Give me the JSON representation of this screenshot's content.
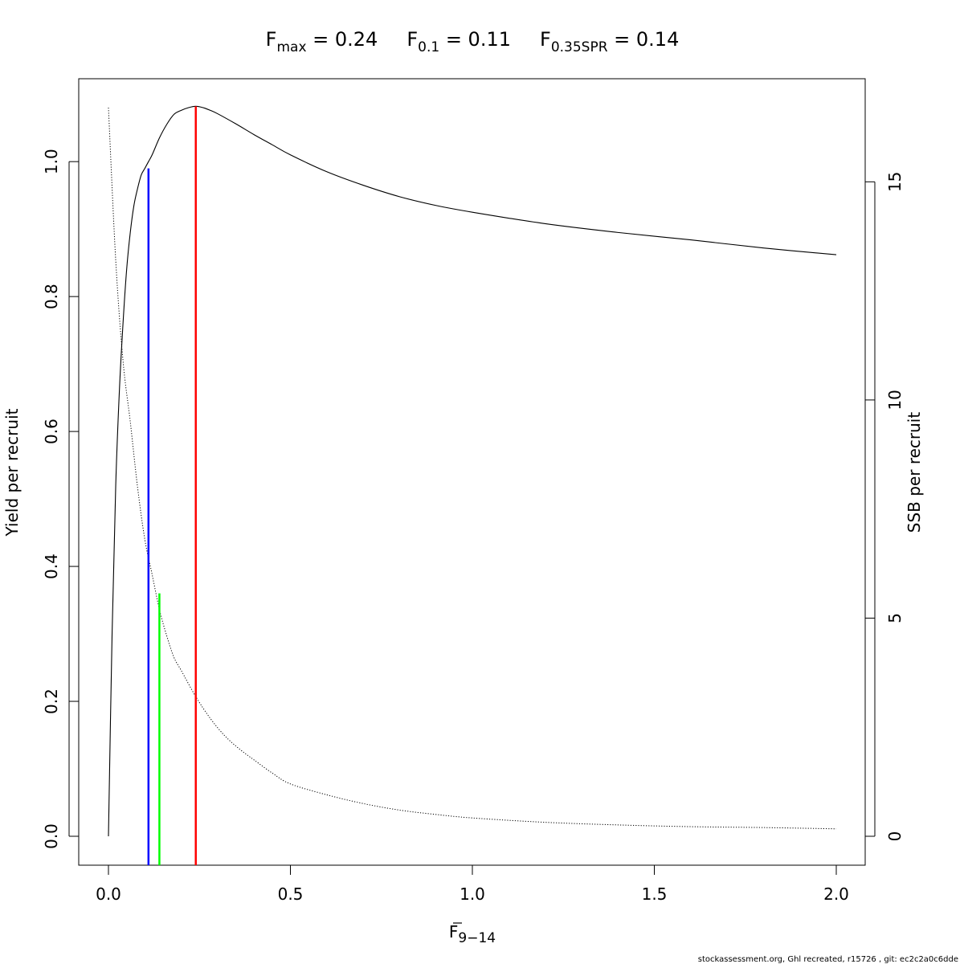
{
  "chart_data": {
    "type": "line",
    "title": {
      "parts": [
        {
          "base": "F",
          "sub": "max",
          "value": " = 0.24"
        },
        {
          "base": "F",
          "sub": "0.1",
          "value": " = 0.11"
        },
        {
          "base": "F",
          "sub": "0.35SPR",
          "value": " = 0.14"
        }
      ]
    },
    "xlabel": {
      "base": "F",
      "sub": "9−14"
    },
    "ylabel_left": "Yield per recruit",
    "ylabel_right": "SSB per recruit",
    "xlim": [
      0,
      2.0
    ],
    "ylim_left": [
      0,
      1.08
    ],
    "ylim_right": [
      0,
      16.7
    ],
    "x_ticks": [
      "0.0",
      "0.5",
      "1.0",
      "1.5",
      "2.0"
    ],
    "y_left_ticks": [
      "0.0",
      "0.2",
      "0.4",
      "0.6",
      "0.8",
      "1.0"
    ],
    "y_right_ticks": [
      "0",
      "5",
      "10",
      "15"
    ],
    "grid": false,
    "series": [
      {
        "axis": "left",
        "style": "solid",
        "color": "#000000",
        "x": [
          0,
          0.01,
          0.02,
          0.03,
          0.04,
          0.05,
          0.06,
          0.07,
          0.08,
          0.09,
          0.1,
          0.11,
          0.12,
          0.14,
          0.16,
          0.18,
          0.2,
          0.22,
          0.24,
          0.26,
          0.28,
          0.3,
          0.35,
          0.4,
          0.45,
          0.5,
          0.6,
          0.7,
          0.8,
          0.9,
          1.0,
          1.2,
          1.4,
          1.6,
          1.8,
          2.0
        ],
        "y": [
          0,
          0.3,
          0.52,
          0.66,
          0.76,
          0.84,
          0.895,
          0.935,
          0.96,
          0.98,
          0.99,
          1.0,
          1.01,
          1.035,
          1.055,
          1.07,
          1.076,
          1.08,
          1.082,
          1.08,
          1.076,
          1.071,
          1.056,
          1.04,
          1.025,
          1.01,
          0.985,
          0.965,
          0.948,
          0.935,
          0.925,
          0.908,
          0.895,
          0.884,
          0.872,
          0.862
        ]
      },
      {
        "axis": "right",
        "style": "dotted",
        "color": "#000000",
        "x": [
          0,
          0.02,
          0.04,
          0.06,
          0.08,
          0.1,
          0.12,
          0.14,
          0.16,
          0.18,
          0.2,
          0.24,
          0.28,
          0.32,
          0.36,
          0.4,
          0.45,
          0.5,
          0.6,
          0.7,
          0.8,
          0.9,
          1.0,
          1.2,
          1.4,
          1.6,
          1.8,
          2.0
        ],
        "y": [
          16.7,
          13.2,
          10.9,
          9.5,
          8.0,
          6.8,
          6.0,
          5.2,
          4.6,
          4.1,
          3.8,
          3.2,
          2.7,
          2.3,
          2.0,
          1.75,
          1.45,
          1.2,
          0.95,
          0.75,
          0.6,
          0.5,
          0.42,
          0.32,
          0.26,
          0.22,
          0.2,
          0.17
        ]
      }
    ],
    "reference_lines": [
      {
        "name": "Fmax",
        "x": 0.24,
        "y_top": 1.082,
        "color": "#ff0000"
      },
      {
        "name": "F0.1",
        "x": 0.11,
        "y_top": 0.99,
        "color": "#0000ff"
      },
      {
        "name": "F0.35SPR",
        "x": 0.14,
        "y_top": 0.36,
        "color": "#00ff00"
      }
    ]
  },
  "footer": "stockassessment.org, Ghl  recreated, r15726 , git: ec2c2a0c6dde"
}
